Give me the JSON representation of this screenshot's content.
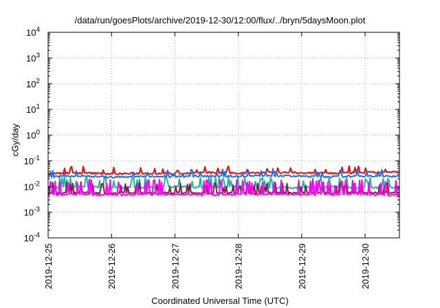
{
  "chart_data": {
    "type": "line",
    "title": "/data/run/goesPlots/archive/2019-12-30/12:00/flux/../bryn/5daysMoon.plot",
    "xlabel": "Coordinated Universal Time (UTC)",
    "ylabel": "cGy/day",
    "yscale": "log",
    "ylim": [
      0.0001,
      10000
    ],
    "xlim": [
      "2019-12-25T00:00",
      "2019-12-30T13:00"
    ],
    "grid": true,
    "legend": "none",
    "y_ticks": [
      {
        "value": 0.0001,
        "base": "10",
        "exp": "-4"
      },
      {
        "value": 0.001,
        "base": "10",
        "exp": "-3"
      },
      {
        "value": 0.01,
        "base": "10",
        "exp": "-2"
      },
      {
        "value": 0.1,
        "base": "10",
        "exp": "-1"
      },
      {
        "value": 1,
        "base": "10",
        "exp": "0"
      },
      {
        "value": 10,
        "base": "10",
        "exp": "1"
      },
      {
        "value": 100,
        "base": "10",
        "exp": "2"
      },
      {
        "value": 1000,
        "base": "10",
        "exp": "3"
      },
      {
        "value": 10000,
        "base": "10",
        "exp": "4"
      }
    ],
    "x_ticks": [
      "2019-12-25",
      "2019-12-26",
      "2019-12-27",
      "2019-12-28",
      "2019-12-29",
      "2019-12-30"
    ],
    "series": [
      {
        "color": "#ff0000",
        "x": [
          "2019-12-25T00:00",
          "2019-12-25T12:00",
          "2019-12-26T00:00",
          "2019-12-26T12:00",
          "2019-12-27T00:00",
          "2019-12-27T12:00",
          "2019-12-28T00:00",
          "2019-12-28T12:00",
          "2019-12-29T00:00",
          "2019-12-29T12:00",
          "2019-12-30T00:00",
          "2019-12-30T13:00"
        ],
        "values": [
          0.032,
          0.034,
          0.031,
          0.033,
          0.032,
          0.035,
          0.033,
          0.036,
          0.034,
          0.033,
          0.035,
          0.036
        ]
      },
      {
        "color": "#1a6cf0",
        "x": [
          "2019-12-25T00:00",
          "2019-12-25T12:00",
          "2019-12-26T00:00",
          "2019-12-26T12:00",
          "2019-12-27T00:00",
          "2019-12-27T12:00",
          "2019-12-28T00:00",
          "2019-12-28T12:00",
          "2019-12-29T00:00",
          "2019-12-29T12:00",
          "2019-12-30T00:00",
          "2019-12-30T13:00"
        ],
        "values": [
          0.024,
          0.026,
          0.023,
          0.025,
          0.024,
          0.026,
          0.025,
          0.027,
          0.025,
          0.024,
          0.026,
          0.025
        ]
      },
      {
        "color": "#20b2a0",
        "x": [
          "2019-12-25T00:00",
          "2019-12-25T12:00",
          "2019-12-26T00:00",
          "2019-12-26T12:00",
          "2019-12-27T00:00",
          "2019-12-27T12:00",
          "2019-12-28T00:00",
          "2019-12-28T12:00",
          "2019-12-29T00:00",
          "2019-12-29T12:00",
          "2019-12-30T00:00",
          "2019-12-30T13:00"
        ],
        "values": [
          0.009,
          0.01,
          0.009,
          0.009,
          0.01,
          0.009,
          0.01,
          0.009,
          0.009,
          0.01,
          0.009,
          0.009
        ]
      },
      {
        "color": "#8b1a4a",
        "x": [
          "2019-12-25T00:00",
          "2019-12-25T12:00",
          "2019-12-26T00:00",
          "2019-12-26T12:00",
          "2019-12-27T00:00",
          "2019-12-27T12:00",
          "2019-12-28T00:00",
          "2019-12-28T12:00",
          "2019-12-29T00:00",
          "2019-12-29T12:00",
          "2019-12-30T00:00",
          "2019-12-30T13:00"
        ],
        "values": [
          0.0055,
          0.0058,
          0.0054,
          0.0056,
          0.0057,
          0.0055,
          0.0056,
          0.0058,
          0.0055,
          0.0056,
          0.0057,
          0.0055
        ]
      },
      {
        "color": "#ff00ff",
        "x": [
          "2019-12-25T00:00",
          "2019-12-25T12:00",
          "2019-12-26T00:00",
          "2019-12-26T12:00",
          "2019-12-27T00:00",
          "2019-12-27T12:00",
          "2019-12-28T00:00",
          "2019-12-28T12:00",
          "2019-12-29T00:00",
          "2019-12-29T12:00",
          "2019-12-30T00:00",
          "2019-12-30T13:00"
        ],
        "values": [
          0.0048,
          0.005,
          0.0047,
          0.0049,
          0.005,
          0.0048,
          0.0049,
          0.0051,
          0.0048,
          0.0049,
          0.005,
          0.0045
        ]
      }
    ]
  }
}
